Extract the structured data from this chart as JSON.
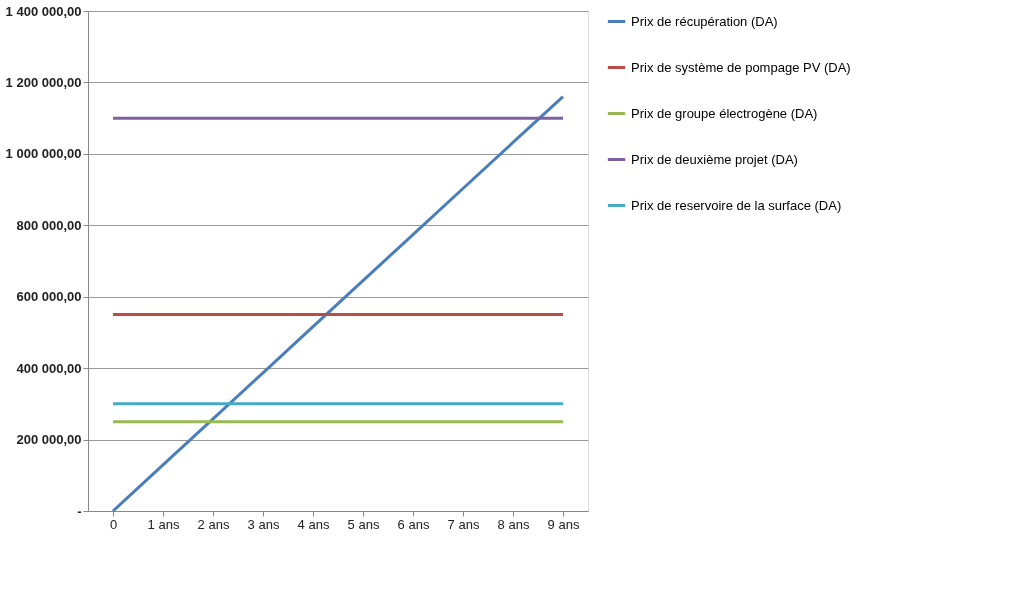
{
  "chart_data": {
    "type": "line",
    "categories": [
      "0",
      "1 ans",
      "2 ans",
      "3 ans",
      "4 ans",
      "5 ans",
      "6 ans",
      "7 ans",
      "8 ans",
      "9 ans"
    ],
    "series": [
      {
        "name": "Prix de récupération (DA)",
        "color": "#4a7ebb",
        "values": [
          0,
          129000,
          258000,
          387000,
          516000,
          645000,
          774000,
          903000,
          1032000,
          1160000
        ]
      },
      {
        "name": "Prix de système de pompage PV (DA)",
        "color": "#be4b48",
        "values": [
          550000,
          550000,
          550000,
          550000,
          550000,
          550000,
          550000,
          550000,
          550000,
          550000
        ]
      },
      {
        "name": "Prix de groupe électrogène (DA)",
        "color": "#98b954",
        "values": [
          250000,
          250000,
          250000,
          250000,
          250000,
          250000,
          250000,
          250000,
          250000,
          250000
        ]
      },
      {
        "name": "Prix de deuxième projet (DA)",
        "color": "#7d60a0",
        "values": [
          1100000,
          1100000,
          1100000,
          1100000,
          1100000,
          1100000,
          1100000,
          1100000,
          1100000,
          1100000
        ]
      },
      {
        "name": "Prix de reservoire de la surface (DA)",
        "color": "#46aac5",
        "values": [
          300000,
          300000,
          300000,
          300000,
          300000,
          300000,
          300000,
          300000,
          300000,
          300000
        ]
      }
    ],
    "ylim": [
      0,
      1400000
    ],
    "yticks": [
      {
        "value": 0,
        "label": "-"
      },
      {
        "value": 200000,
        "label": "200 000,00"
      },
      {
        "value": 400000,
        "label": "400 000,00"
      },
      {
        "value": 600000,
        "label": "600 000,00"
      },
      {
        "value": 800000,
        "label": "800 000,00"
      },
      {
        "value": 1000000,
        "label": "1 000 000,00"
      },
      {
        "value": 1200000,
        "label": "1 200 000,00"
      },
      {
        "value": 1400000,
        "label": "1 400 000,00"
      }
    ],
    "grid": "y",
    "legend": "right",
    "marker": "none",
    "line_style": "solid"
  }
}
